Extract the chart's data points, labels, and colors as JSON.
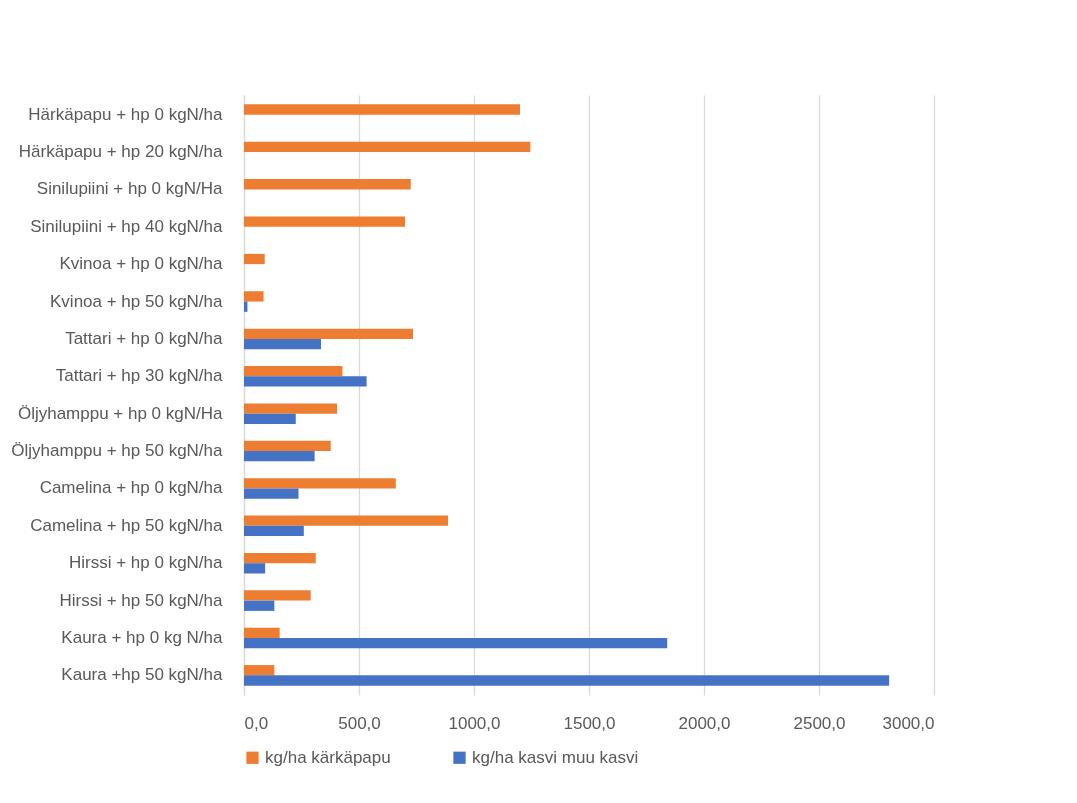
{
  "chart_data": {
    "type": "bar",
    "orientation": "horizontal",
    "categories": [
      "Härkäpapu + hp 0 kgN/ha",
      "Härkäpapu + hp 20 kgN/ha",
      "Sinilupiini + hp 0 kgN/Ha",
      "Sinilupiini + hp 40 kgN/ha",
      "Kvinoa + hp 0 kgN/ha",
      "Kvinoa + hp 50 kgN/ha",
      "Tattari + hp 0 kgN/ha",
      "Tattari + hp 30 kgN/ha",
      "Öljyhamppu + hp 0 kgN/Ha",
      "Öljyhamppu + hp 50 kgN/ha",
      "Camelina + hp 0 kgN/ha",
      "Camelina + hp 50 kgN/ha",
      "Hirssi + hp 0 kgN/ha",
      "Hirssi + hp 50 kgN/ha",
      "Kaura + hp 0 kg N/ha",
      "Kaura +hp 50 kgN/ha"
    ],
    "series": [
      {
        "name": "kg/ha kärkäpapu",
        "color": "#ed7d31",
        "values": [
          1200,
          1245,
          725,
          700,
          90,
          85,
          735,
          428,
          405,
          377,
          660,
          887,
          312,
          290,
          155,
          132
        ]
      },
      {
        "name": "kg/ha kasvi muu kasvi",
        "color": "#4472c4",
        "values": [
          null,
          null,
          null,
          null,
          null,
          15,
          335,
          533,
          225,
          307,
          237,
          260,
          92,
          132,
          1840,
          2805
        ]
      }
    ],
    "xlim": [
      0,
      3000
    ],
    "xticks": [
      {
        "value": 0,
        "label": "0,0"
      },
      {
        "value": 500,
        "label": "500,0"
      },
      {
        "value": 1000,
        "label": "1000,0"
      },
      {
        "value": 1500,
        "label": "1500,0"
      },
      {
        "value": 2000,
        "label": "2000,0"
      },
      {
        "value": 2500,
        "label": "2500,0"
      },
      {
        "value": 3000,
        "label": "3000,0"
      }
    ],
    "grid": "x",
    "legend": "bottom"
  }
}
